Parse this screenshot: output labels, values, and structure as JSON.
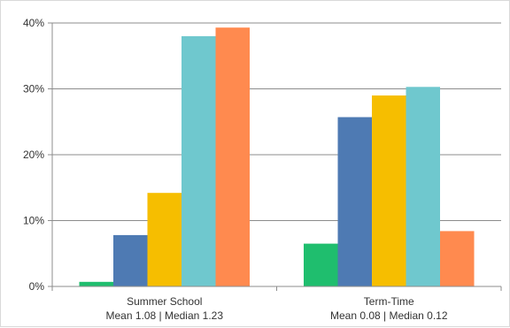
{
  "chart_data": {
    "type": "bar",
    "categories": [
      {
        "line1": "Summer School",
        "line2": "Mean 1.08 | Median 1.23"
      },
      {
        "line1": "Term-Time",
        "line2": "Mean 0.08 | Median 0.12"
      }
    ],
    "series": [
      {
        "color": "#1FBE6E",
        "values": [
          0.7,
          6.5
        ]
      },
      {
        "color": "#4E7AB3",
        "values": [
          7.8,
          25.7
        ]
      },
      {
        "color": "#F6BE00",
        "values": [
          14.2,
          29.0
        ]
      },
      {
        "color": "#6FC8CE",
        "values": [
          38.0,
          30.3
        ]
      },
      {
        "color": "#FF8A4F",
        "values": [
          39.3,
          8.4
        ]
      }
    ],
    "y_ticks": [
      "0%",
      "10%",
      "20%",
      "30%",
      "40%"
    ],
    "y_tick_values": [
      0,
      10,
      20,
      30,
      40
    ],
    "ylim": [
      0,
      40
    ],
    "grid": true,
    "title": "",
    "xlabel": "",
    "ylabel": ""
  }
}
